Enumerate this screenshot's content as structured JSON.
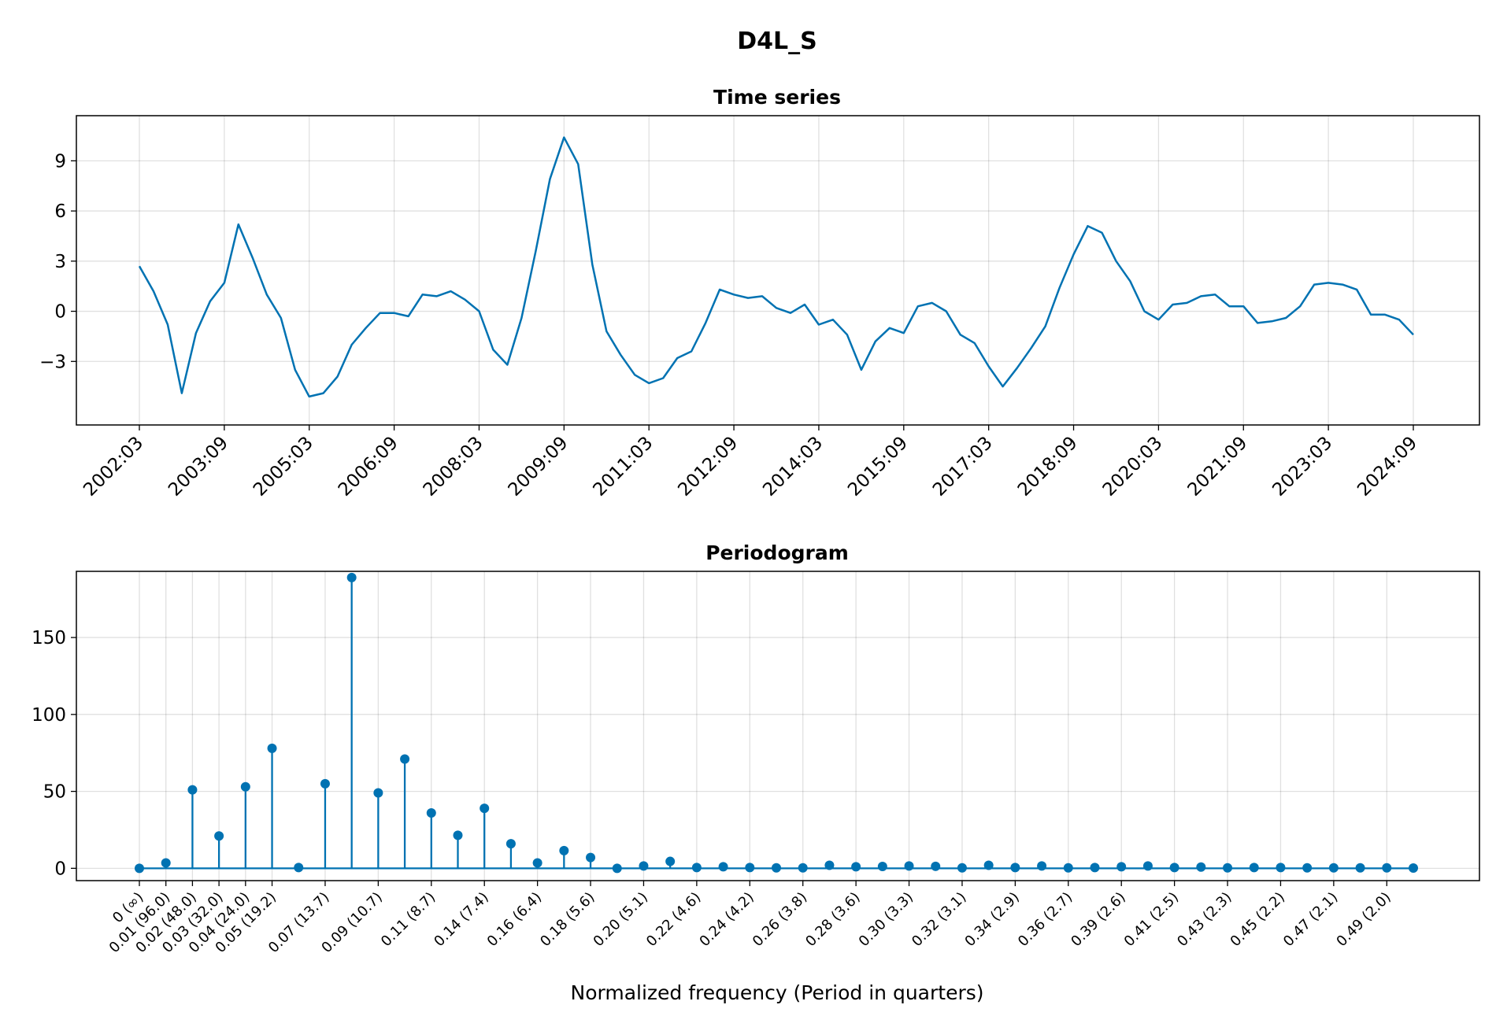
{
  "figure": {
    "title": "D4L_S"
  },
  "chart_data": [
    {
      "type": "line",
      "title": "Time series",
      "xlabel": "",
      "ylabel": "",
      "ylim": [
        -6.8,
        11.7
      ],
      "yticks": [
        -3,
        0,
        3,
        6,
        9
      ],
      "ytick_labels": [
        "−3",
        "0",
        "3",
        "6",
        "9"
      ],
      "xtick_labels": [
        "2002:03",
        "2003:09",
        "2005:03",
        "2006:09",
        "2008:03",
        "2009:09",
        "2011:03",
        "2012:09",
        "2014:03",
        "2015:09",
        "2017:03",
        "2018:09",
        "2020:03",
        "2021:09",
        "2023:03",
        "2024:09"
      ],
      "x_start": "2002:03",
      "x_end": "2024:09",
      "x_frequency": "quarterly",
      "grid": true,
      "color": "#0072b2",
      "values": [
        2.7,
        1.2,
        -0.8,
        -4.9,
        -1.3,
        0.6,
        1.7,
        5.2,
        3.2,
        1.0,
        -0.4,
        -3.5,
        -5.1,
        -4.9,
        -3.9,
        -2.0,
        -1.0,
        -0.1,
        -0.1,
        -0.3,
        1.0,
        0.9,
        1.2,
        0.7,
        0.0,
        -2.3,
        -3.2,
        -0.4,
        3.6,
        7.9,
        10.4,
        8.8,
        2.8,
        -1.2,
        -2.6,
        -3.8,
        -4.3,
        -4.0,
        -2.8,
        -2.4,
        -0.7,
        1.3,
        1.0,
        0.8,
        0.9,
        0.2,
        -0.1,
        0.4,
        -0.8,
        -0.5,
        -1.4,
        -3.5,
        -1.8,
        -1.0,
        -1.3,
        0.3,
        0.5,
        0.0,
        -1.4,
        -1.9,
        -3.3,
        -4.5,
        -3.4,
        -2.2,
        -0.9,
        1.4,
        3.4,
        5.1,
        4.7,
        3.0,
        1.8,
        0.0,
        -0.5,
        0.4,
        0.5,
        0.9,
        1.0,
        0.3,
        0.3,
        -0.7,
        -0.6,
        -0.4,
        0.3,
        1.6,
        1.7,
        1.6,
        1.3,
        -0.2,
        -0.2,
        -0.5,
        -1.4
      ]
    },
    {
      "type": "stem",
      "title": "Periodogram",
      "xlabel": "Normalized frequency (Period in quarters)",
      "ylabel": "",
      "ylim": [
        -8,
        193
      ],
      "yticks": [
        0,
        50,
        100,
        150
      ],
      "xtick_labels": [
        "0 (∞)",
        "0.01 (96.0)",
        "0.02 (48.0)",
        "0.03 (32.0)",
        "0.04 (24.0)",
        "0.05 (19.2)",
        "0.07 (13.7)",
        "0.09 (10.7)",
        "0.11 (8.7)",
        "0.14 (7.4)",
        "0.16 (6.4)",
        "0.18 (5.6)",
        "0.20 (5.1)",
        "0.22 (4.6)",
        "0.24 (4.2)",
        "0.26 (3.8)",
        "0.28 (3.6)",
        "0.30 (3.3)",
        "0.32 (3.1)",
        "0.34 (2.9)",
        "0.36 (2.7)",
        "0.39 (2.6)",
        "0.41 (2.5)",
        "0.43 (2.3)",
        "0.45 (2.2)",
        "0.47 (2.1)",
        "0.49 (2.0)"
      ],
      "xtick_indices": [
        0,
        1,
        2,
        3,
        4,
        5,
        7,
        9,
        11,
        13,
        15,
        17,
        19,
        21,
        23,
        25,
        27,
        29,
        31,
        33,
        35,
        37,
        39,
        41,
        43,
        45,
        47
      ],
      "grid": true,
      "color": "#0072b2",
      "values": [
        0,
        3.5,
        51,
        21,
        53,
        78,
        0.5,
        55,
        189,
        49,
        71,
        36,
        21.5,
        39,
        16,
        3.5,
        11.5,
        7,
        0,
        1.5,
        4.5,
        0.5,
        1,
        0.5,
        0.3,
        0.3,
        2,
        1,
        1.2,
        1.5,
        1.3,
        0.3,
        2,
        0.5,
        1.5,
        0.3,
        0.5,
        1,
        1.5,
        0.5,
        0.8,
        0.3,
        0.5,
        0.5,
        0.3,
        0.3,
        0.3,
        0.3,
        0.2
      ]
    }
  ]
}
